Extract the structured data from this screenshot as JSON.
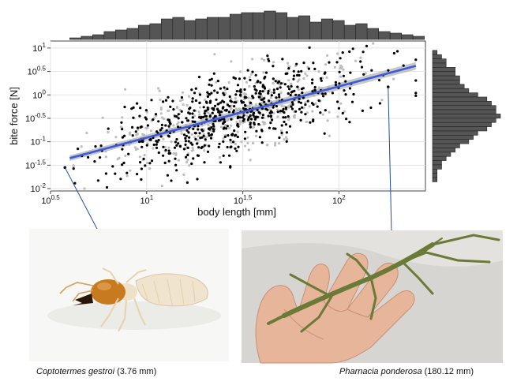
{
  "chart_data": {
    "type": "scatter",
    "xlabel": "body length [mm]",
    "ylabel": "bite force [N]",
    "xscale": "log10",
    "yscale": "log10",
    "xlim_log10": [
      0.5,
      2.45
    ],
    "ylim_log10": [
      -2.05,
      1.15
    ],
    "x_tick_labels": [
      "10^0.5",
      "10^1",
      "10^1.5",
      "10^2"
    ],
    "x_tick_exponents": [
      0.5,
      1,
      1.5,
      2
    ],
    "y_tick_labels": [
      "10^1",
      "10^0.5",
      "10^0",
      "10^-0.5",
      "10^-1",
      "10^-1.5",
      "10^-2"
    ],
    "y_tick_exponents": [
      1,
      0.5,
      0,
      -0.5,
      -1,
      -1.5,
      -2
    ],
    "grid": true,
    "legend": "none",
    "colors": {
      "observed_points": "#000000",
      "simulated_points": "#bdbdbd",
      "regression_line": "#3b5bdb",
      "confidence_band": "#b0b0b0",
      "histogram_bar": "#555555",
      "annotation_line": "#1f4e9c"
    },
    "regression_fit": {
      "x_log10": [
        0.6,
        2.4
      ],
      "y_log10": [
        -1.35,
        0.62
      ]
    },
    "highlight_points": [
      {
        "x_log10": 0.575,
        "y_log10": -1.55,
        "species": "Coptotermes gestroi"
      },
      {
        "x_log10": 2.256,
        "y_log10": 0.17,
        "species": "Pharnacia ponderosa"
      }
    ],
    "top_histogram": {
      "bin_start_log10": 0.6,
      "bin_width_log10": 0.0595,
      "counts": [
        1,
        2,
        3,
        5,
        6,
        7,
        9,
        10,
        13,
        14,
        12,
        13,
        14,
        14,
        16,
        17,
        17,
        18,
        17,
        14,
        15,
        11,
        13,
        12,
        9,
        10,
        7,
        5,
        4,
        3,
        2
      ]
    },
    "right_histogram": {
      "bin_top_log10": 0.95,
      "bin_height_log10": 0.0905,
      "counts": [
        1,
        2,
        3,
        3,
        5,
        5,
        6,
        6,
        7,
        8,
        10,
        12,
        13,
        14,
        14,
        15,
        14,
        13,
        12,
        10,
        9,
        8,
        6,
        5,
        4,
        3,
        2,
        2,
        1,
        1,
        1
      ]
    },
    "observed_seed": 7,
    "observed_count": 620,
    "simulated_seed": 13,
    "simulated_count": 380
  },
  "photos": [
    {
      "caption_species": "Coptotermes gestroi",
      "caption_detail": "(3.76 mm)"
    },
    {
      "caption_species": "Pharnacia ponderosa",
      "caption_detail": "(180.12 mm)"
    }
  ]
}
